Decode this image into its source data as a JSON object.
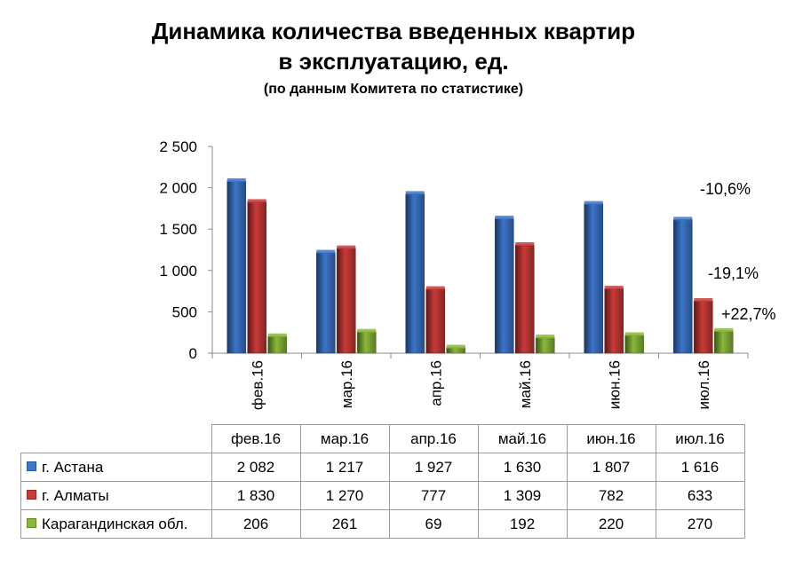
{
  "title_line1": "Динамика количества введенных квартир",
  "title_line2": "в эксплуатацию, ед.",
  "subtitle": "(по данным Комитета по статистике)",
  "colors": {
    "astana": "#3c75c9",
    "almaty": "#c93a38",
    "karaganda": "#8ab83a"
  },
  "annotations": [
    "-10,6%",
    "-19,1%",
    "+22,7%"
  ],
  "chart_data": {
    "type": "bar",
    "categories": [
      "фев.16",
      "мар.16",
      "апр.16",
      "май.16",
      "июн.16",
      "июл.16"
    ],
    "yticks": [
      "0",
      "500",
      "1 000",
      "1 500",
      "2 000",
      "2 500"
    ],
    "ylim": [
      0,
      2500
    ],
    "grid": false,
    "series": [
      {
        "name": "г. Астана",
        "values": [
          2082,
          1217,
          1927,
          1630,
          1807,
          1616
        ],
        "labels": [
          "2 082",
          "1 217",
          "1 927",
          "1 630",
          "1 807",
          "1 616"
        ]
      },
      {
        "name": "г. Алматы",
        "values": [
          1830,
          1270,
          777,
          1309,
          782,
          633
        ],
        "labels": [
          "1 830",
          "1 270",
          "777",
          "1 309",
          "782",
          "633"
        ]
      },
      {
        "name": "Карагандинская обл.",
        "values": [
          206,
          261,
          69,
          192,
          220,
          270
        ],
        "labels": [
          "206",
          "261",
          "69",
          "192",
          "220",
          "270"
        ]
      }
    ]
  }
}
